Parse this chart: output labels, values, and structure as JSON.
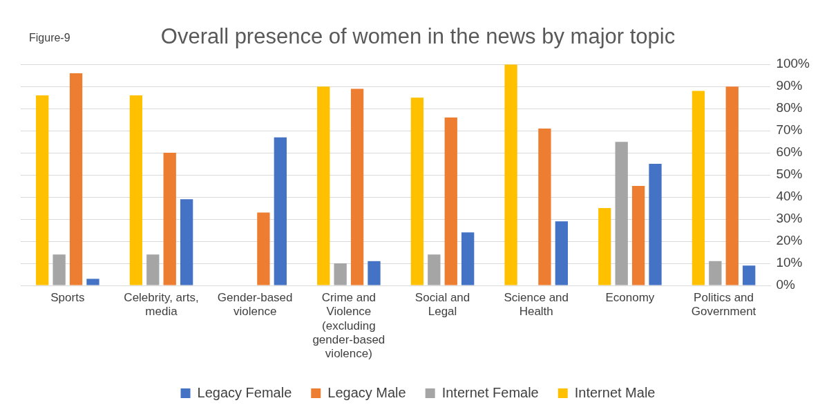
{
  "chart_data": {
    "type": "bar",
    "title": "Overall presence of women in the news by major topic",
    "annotations": [
      "Figure-9"
    ],
    "categories": [
      "Sports",
      "Celebrity, arts, media",
      "Gender-based violence",
      "Crime and Violence (excluding gender-based violence)",
      "Social and Legal",
      "Science and Health",
      "Economy",
      "Politics and Government"
    ],
    "series": [
      {
        "name": "Internet Male",
        "color": "#ffc000",
        "values": [
          86,
          86,
          null,
          90,
          85,
          100,
          35,
          88
        ]
      },
      {
        "name": "Internet Female",
        "color": "#a5a5a5",
        "values": [
          14,
          14,
          null,
          10,
          14,
          null,
          65,
          11
        ]
      },
      {
        "name": "Legacy Male",
        "color": "#ed7d31",
        "values": [
          96,
          60,
          33,
          89,
          76,
          71,
          45,
          90
        ]
      },
      {
        "name": "Legacy Female",
        "color": "#4472c4",
        "values": [
          3,
          39,
          67,
          11,
          24,
          29,
          55,
          9
        ]
      }
    ],
    "ylim": [
      0,
      100
    ],
    "yticks": [
      {
        "value": 0,
        "label": "0%"
      },
      {
        "value": 10,
        "label": "10%"
      },
      {
        "value": 20,
        "label": "20%"
      },
      {
        "value": 30,
        "label": "30%"
      },
      {
        "value": 40,
        "label": "40%"
      },
      {
        "value": 50,
        "label": "50%"
      },
      {
        "value": 60,
        "label": "60%"
      },
      {
        "value": 70,
        "label": "70%"
      },
      {
        "value": 80,
        "label": "80%"
      },
      {
        "value": 90,
        "label": "90%"
      },
      {
        "value": 100,
        "label": "100%"
      }
    ],
    "grid": "y",
    "legend": "bottom"
  }
}
